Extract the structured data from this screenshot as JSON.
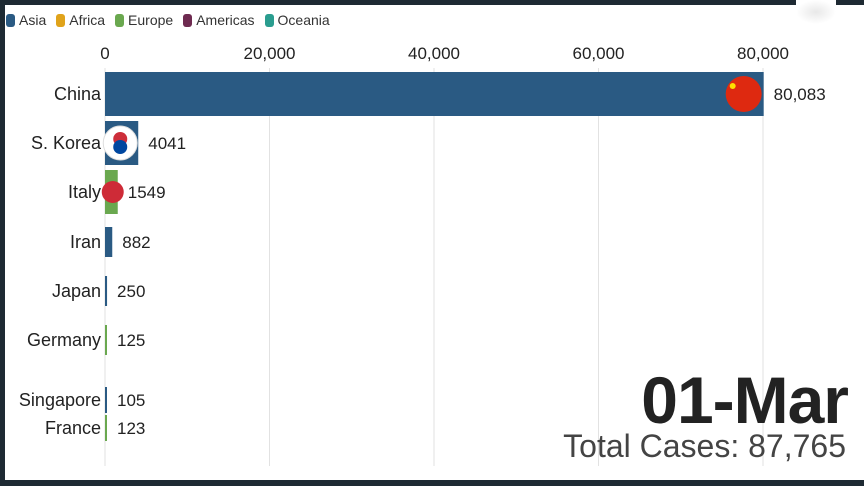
{
  "legend": [
    {
      "label": "Asia",
      "color": "#2a5a83"
    },
    {
      "label": "Africa",
      "color": "#e0a31b"
    },
    {
      "label": "Europe",
      "color": "#6aa84f"
    },
    {
      "label": "Americas",
      "color": "#6e2a50"
    },
    {
      "label": "Oceania",
      "color": "#2a9d8f"
    }
  ],
  "date": "01-Mar",
  "total": "Total Cases: 87,765",
  "chart_data": {
    "type": "bar",
    "orientation": "horizontal",
    "xlim": [
      0,
      80000
    ],
    "xticks": [
      0,
      20000,
      40000,
      60000,
      80000
    ],
    "xtick_labels": [
      "0",
      "20,000",
      "40,000",
      "60,000",
      "80,000"
    ],
    "grid": true,
    "legend_position": "top-left",
    "categories": [
      "China",
      "S. Korea",
      "Italy",
      "Iran",
      "Japan",
      "Germany",
      "Singapore",
      "France"
    ],
    "values": [
      80083,
      4041,
      1549,
      882,
      250,
      125,
      105,
      123
    ],
    "value_labels": [
      "80,083",
      "4041",
      "1549",
      "882",
      "250",
      "125",
      "105",
      "123"
    ],
    "continents": [
      "Asia",
      "Asia",
      "Europe",
      "Asia",
      "Asia",
      "Europe",
      "Asia",
      "Europe"
    ]
  }
}
